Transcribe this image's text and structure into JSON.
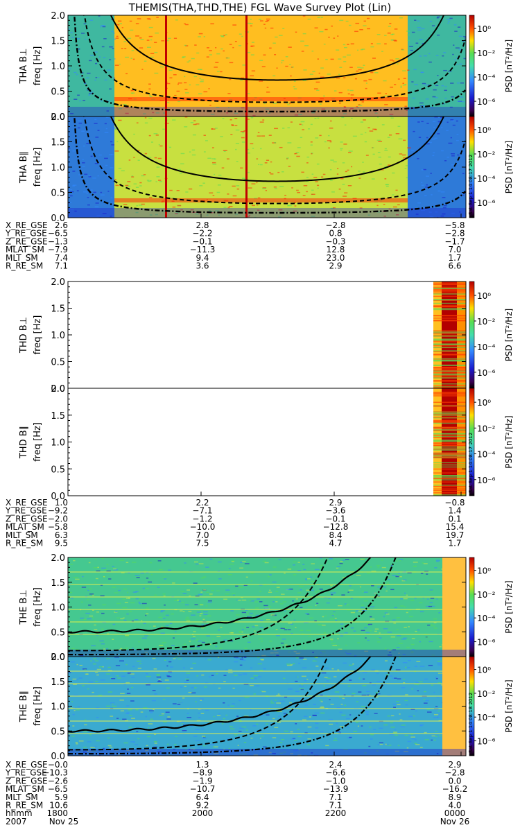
{
  "title": "THEMIS(THA,THD,THE) FGL Wave Survey Plot (Lin)",
  "colorbar": {
    "label": "PSD [nT²/Hz]",
    "ticks": [
      "10⁰",
      "10⁻²",
      "10⁻⁴",
      "10⁻⁶"
    ]
  },
  "stamps": {
    "tha": "Sat Sep  1 14:08:17 2012",
    "thd": "Sat Sep  1 14:08:17 2012",
    "the": "Sat Sep  1 14:08:18 2012"
  },
  "colors": {
    "saturated": "#b30000",
    "hot": "#ff2000",
    "warm": "#ffd000",
    "mid": "#55dd55",
    "cool": "#3388ff",
    "cold": "#1a1acc"
  },
  "chart_data": [
    {
      "type": "heatmap",
      "panel": "THA B⊥",
      "ylabel": "freq [Hz]",
      "ylim": [
        0,
        2
      ],
      "yticks": [
        "0.0",
        "0.5",
        "1.0",
        "1.5",
        "2.0"
      ]
    },
    {
      "type": "heatmap",
      "panel": "THA B∥",
      "ylabel": "freq [Hz]",
      "ylim": [
        0,
        2
      ],
      "yticks": [
        "0.0",
        "0.5",
        "1.0",
        "1.5",
        "2.0"
      ]
    },
    {
      "type": "heatmap",
      "panel": "THD B⊥",
      "ylabel": "freq [Hz]",
      "ylim": [
        0,
        2
      ],
      "yticks": [
        "0.0",
        "0.5",
        "1.0",
        "1.5",
        "2.0"
      ]
    },
    {
      "type": "heatmap",
      "panel": "THD B∥",
      "ylabel": "freq [Hz]",
      "ylim": [
        0,
        2
      ],
      "yticks": [
        "0.0",
        "0.5",
        "1.0",
        "1.5",
        "2.0"
      ]
    },
    {
      "type": "heatmap",
      "panel": "THE B⊥",
      "ylabel": "freq [Hz]",
      "ylim": [
        0,
        2
      ],
      "yticks": [
        "0.0",
        "0.5",
        "1.0",
        "1.5",
        "2.0"
      ]
    },
    {
      "type": "heatmap",
      "panel": "THE B∥",
      "ylabel": "freq [Hz]",
      "ylim": [
        0,
        2
      ],
      "yticks": [
        "0.0",
        "0.5",
        "1.0",
        "1.5",
        "2.0"
      ]
    }
  ],
  "ephemeris": [
    {
      "probe": "THA",
      "rows": [
        {
          "label": "X_RE_GSE",
          "values": [
            "2.6",
            "2.8",
            "−2.8",
            "−5.8"
          ]
        },
        {
          "label": "Y_RE_GSE",
          "values": [
            "−6.5",
            "−2.2",
            "0.8",
            "−2.8"
          ]
        },
        {
          "label": "Z_RE_GSE",
          "values": [
            "−1.3",
            "−0.1",
            "−0.3",
            "−1.7"
          ]
        },
        {
          "label": "MLAT_SM",
          "values": [
            "−7.9",
            "−11.3",
            "12.8",
            "7.0"
          ]
        },
        {
          "label": "MLT_SM",
          "values": [
            "7.4",
            "9.4",
            "23.0",
            "1.7"
          ]
        },
        {
          "label": "R_RE_SM",
          "values": [
            "7.1",
            "3.6",
            "2.9",
            "6.6"
          ]
        }
      ]
    },
    {
      "probe": "THD",
      "rows": [
        {
          "label": "X_RE_GSE",
          "values": [
            "1.0",
            "2.2",
            "2.9",
            "−0.8"
          ]
        },
        {
          "label": "Y_RE_GSE",
          "values": [
            "−9.2",
            "−7.1",
            "−3.6",
            "1.4"
          ]
        },
        {
          "label": "Z_RE_GSE",
          "values": [
            "−2.0",
            "−1.2",
            "−0.1",
            "0.1"
          ]
        },
        {
          "label": "MLAT_SM",
          "values": [
            "−5.8",
            "−10.0",
            "−12.8",
            "15.4"
          ]
        },
        {
          "label": "MLT_SM",
          "values": [
            "6.3",
            "7.0",
            "8.4",
            "19.7"
          ]
        },
        {
          "label": "R_RE_SM",
          "values": [
            "9.5",
            "7.5",
            "4.7",
            "1.7"
          ]
        }
      ]
    },
    {
      "probe": "THE",
      "rows": [
        {
          "label": "X_RE_GSE",
          "values": [
            "−0.0",
            "1.3",
            "2.4",
            "2.9"
          ]
        },
        {
          "label": "Y_RE_GSE",
          "values": [
            "−10.3",
            "−8.9",
            "−6.6",
            "−2.8"
          ]
        },
        {
          "label": "Z_RE_GSE",
          "values": [
            "−2.6",
            "−1.9",
            "−1.0",
            "0.0"
          ]
        },
        {
          "label": "MLAT_SM",
          "values": [
            "−6.5",
            "−10.7",
            "−13.9",
            "−16.2"
          ]
        },
        {
          "label": "MLT_SM",
          "values": [
            "5.9",
            "6.4",
            "7.1",
            "8.9"
          ]
        },
        {
          "label": "R_RE_SM",
          "values": [
            "10.6",
            "9.2",
            "7.1",
            "4.0"
          ]
        },
        {
          "label": "hhmm",
          "values": [
            "1800",
            "2000",
            "2200",
            "0000"
          ]
        }
      ]
    }
  ],
  "time_axis": {
    "year": "2007",
    "dates": [
      "Nov 25",
      "Nov 26"
    ]
  }
}
